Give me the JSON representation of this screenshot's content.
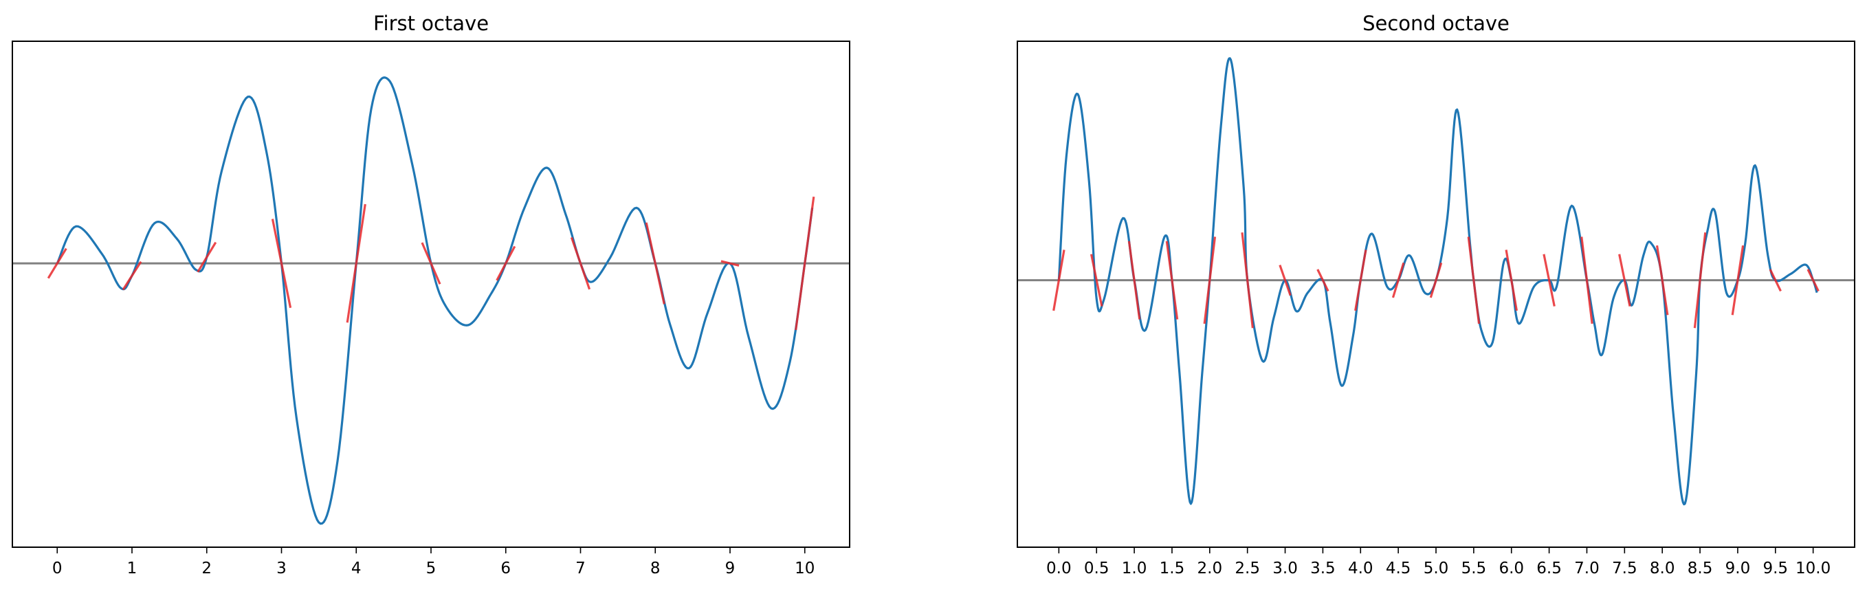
{
  "chart_data": [
    {
      "type": "line",
      "title": "First octave",
      "xlabel": "",
      "ylabel": "",
      "xlim": [
        -0.6,
        10.6
      ],
      "ylim": [
        -4.6,
        3.6
      ],
      "xticks": [
        0,
        1,
        2,
        3,
        4,
        5,
        6,
        7,
        8,
        9,
        10
      ],
      "xtick_labels": [
        "0",
        "1",
        "2",
        "3",
        "4",
        "5",
        "6",
        "7",
        "8",
        "9",
        "10"
      ],
      "yticks_shown": false,
      "grid": false,
      "baseline": 0,
      "curve_color": "#1f77b4",
      "baseline_color": "#808080",
      "tangent_color": "#e8282b",
      "curve_points": [
        [
          0,
          0
        ],
        [
          0.25,
          0.6
        ],
        [
          0.6,
          0.15
        ],
        [
          0.85,
          -0.4
        ],
        [
          1,
          -0.2
        ],
        [
          1.3,
          0.65
        ],
        [
          1.6,
          0.4
        ],
        [
          1.85,
          -0.1
        ],
        [
          2,
          0.1
        ],
        [
          2.2,
          1.5
        ],
        [
          2.55,
          2.7
        ],
        [
          2.8,
          1.8
        ],
        [
          3,
          0
        ],
        [
          3.2,
          -2.5
        ],
        [
          3.5,
          -4.2
        ],
        [
          3.75,
          -3.2
        ],
        [
          4,
          0
        ],
        [
          4.2,
          2.5
        ],
        [
          4.45,
          2.95
        ],
        [
          4.75,
          1.6
        ],
        [
          5,
          0
        ],
        [
          5.2,
          -0.7
        ],
        [
          5.5,
          -1.0
        ],
        [
          5.8,
          -0.5
        ],
        [
          6,
          0
        ],
        [
          6.25,
          0.9
        ],
        [
          6.55,
          1.55
        ],
        [
          6.8,
          0.8
        ],
        [
          7,
          0
        ],
        [
          7.15,
          -0.3
        ],
        [
          7.4,
          0.1
        ],
        [
          7.75,
          0.9
        ],
        [
          8,
          0
        ],
        [
          8.2,
          -1.0
        ],
        [
          8.45,
          -1.7
        ],
        [
          8.7,
          -0.8
        ],
        [
          9,
          0
        ],
        [
          9.25,
          -1.2
        ],
        [
          9.55,
          -2.35
        ],
        [
          9.8,
          -1.6
        ],
        [
          10,
          0
        ],
        [
          10.1,
          0.9
        ]
      ],
      "tangents": [
        [
          0,
          0,
          2.0
        ],
        [
          1,
          -0.2,
          1.9
        ],
        [
          2,
          0.1,
          2.0
        ],
        [
          3,
          0,
          -6.0
        ],
        [
          4,
          0,
          8.0
        ],
        [
          5,
          0,
          -2.8
        ],
        [
          6,
          0,
          2.3
        ],
        [
          7,
          0,
          -3.5
        ],
        [
          8,
          0,
          -5.5
        ],
        [
          9,
          0,
          -0.3
        ],
        [
          10,
          0,
          9.0
        ]
      ]
    },
    {
      "type": "line",
      "title": "Second octave",
      "xlabel": "",
      "ylabel": "",
      "xlim": [
        -0.55,
        10.55
      ],
      "ylim": [
        -4.3,
        3.85
      ],
      "xticks": [
        0,
        0.5,
        1,
        1.5,
        2,
        2.5,
        3,
        3.5,
        4,
        4.5,
        5,
        5.5,
        6,
        6.5,
        7,
        7.5,
        8,
        8.5,
        9,
        9.5,
        10
      ],
      "xtick_labels": [
        "0.0",
        "0.5",
        "1.0",
        "1.5",
        "2.0",
        "2.5",
        "3.0",
        "3.5",
        "4.0",
        "4.5",
        "5.0",
        "5.5",
        "6.0",
        "6.5",
        "7.0",
        "7.5",
        "8.0",
        "8.5",
        "9.0",
        "9.5",
        "10.0"
      ],
      "yticks_shown": false,
      "grid": false,
      "baseline": 0,
      "curve_color": "#1f77b4",
      "baseline_color": "#808080",
      "tangent_color": "#e8282b",
      "curve_points": [
        [
          0,
          0
        ],
        [
          0.1,
          2.0
        ],
        [
          0.25,
          3.0
        ],
        [
          0.4,
          1.6
        ],
        [
          0.5,
          -0.3
        ],
        [
          0.6,
          -0.3
        ],
        [
          0.85,
          1.0
        ],
        [
          1,
          0
        ],
        [
          1.15,
          -0.8
        ],
        [
          1.4,
          0.7
        ],
        [
          1.5,
          0
        ],
        [
          1.6,
          -1.5
        ],
        [
          1.75,
          -3.6
        ],
        [
          1.9,
          -1.5
        ],
        [
          2,
          0
        ],
        [
          2.15,
          2.5
        ],
        [
          2.28,
          3.55
        ],
        [
          2.45,
          1.5
        ],
        [
          2.5,
          0
        ],
        [
          2.7,
          -1.3
        ],
        [
          2.85,
          -0.6
        ],
        [
          3,
          0
        ],
        [
          3.15,
          -0.5
        ],
        [
          3.3,
          -0.2
        ],
        [
          3.5,
          0
        ],
        [
          3.6,
          -0.7
        ],
        [
          3.75,
          -1.7
        ],
        [
          3.9,
          -0.9
        ],
        [
          4,
          0
        ],
        [
          4.15,
          0.75
        ],
        [
          4.35,
          -0.1
        ],
        [
          4.5,
          0
        ],
        [
          4.65,
          0.4
        ],
        [
          4.85,
          -0.2
        ],
        [
          5,
          0
        ],
        [
          5.15,
          1.0
        ],
        [
          5.28,
          2.75
        ],
        [
          5.45,
          0.6
        ],
        [
          5.5,
          0
        ],
        [
          5.6,
          -0.8
        ],
        [
          5.75,
          -1.0
        ],
        [
          5.9,
          0.3
        ],
        [
          6,
          0
        ],
        [
          6.1,
          -0.7
        ],
        [
          6.3,
          -0.1
        ],
        [
          6.5,
          0
        ],
        [
          6.6,
          -0.1
        ],
        [
          6.8,
          1.2
        ],
        [
          7,
          0
        ],
        [
          7.1,
          -0.7
        ],
        [
          7.2,
          -1.2
        ],
        [
          7.35,
          -0.3
        ],
        [
          7.5,
          0
        ],
        [
          7.6,
          -0.4
        ],
        [
          7.75,
          0.4
        ],
        [
          7.85,
          0.6
        ],
        [
          8,
          0
        ],
        [
          8.15,
          -2.2
        ],
        [
          8.3,
          -3.6
        ],
        [
          8.45,
          -1.5
        ],
        [
          8.5,
          0
        ],
        [
          8.6,
          0.8
        ],
        [
          8.7,
          1.1
        ],
        [
          8.85,
          -0.2
        ],
        [
          9,
          0
        ],
        [
          9.1,
          0.6
        ],
        [
          9.23,
          1.85
        ],
        [
          9.4,
          0.4
        ],
        [
          9.5,
          0
        ],
        [
          9.7,
          0.1
        ],
        [
          9.9,
          0.25
        ],
        [
          10,
          0
        ],
        [
          10.05,
          -0.2
        ]
      ],
      "tangents": [
        [
          0,
          0,
          7.0
        ],
        [
          0.5,
          0,
          -6.0
        ],
        [
          1,
          0,
          -9.0
        ],
        [
          1.5,
          0,
          -9.0
        ],
        [
          2,
          0,
          10.0
        ],
        [
          2.5,
          0,
          -11.0
        ],
        [
          3,
          0,
          -3.5
        ],
        [
          3.5,
          0,
          -2.5
        ],
        [
          4,
          0,
          7.0
        ],
        [
          4.5,
          0,
          4.0
        ],
        [
          5,
          0,
          4.0
        ],
        [
          5.5,
          0,
          -10.0
        ],
        [
          6,
          0,
          -7.0
        ],
        [
          6.5,
          0,
          -6.0
        ],
        [
          7,
          0,
          -10.0
        ],
        [
          7.5,
          0,
          -6.0
        ],
        [
          8,
          0,
          -8.0
        ],
        [
          8.5,
          0,
          11.0
        ],
        [
          9,
          0,
          8.0
        ],
        [
          9.5,
          0,
          -2.5
        ],
        [
          10,
          0,
          -2.5
        ]
      ]
    }
  ]
}
